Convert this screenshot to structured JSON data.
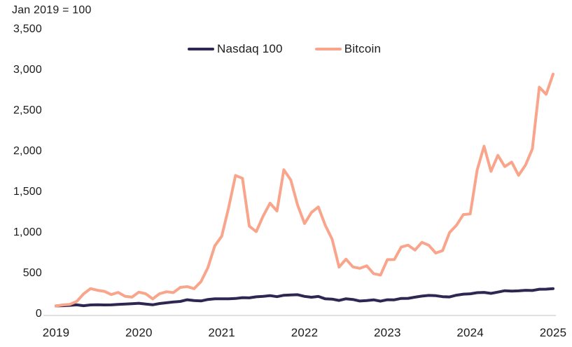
{
  "chart_data": {
    "type": "line",
    "title": "Jan 2019 = 100",
    "x_interval": "monthly",
    "x_start": "Jan 2019",
    "x_end": "Jan 2025",
    "ylim": [
      0,
      3500
    ],
    "grid": false,
    "legend_position": "top-center",
    "background_color": "#ffffff",
    "axis_line_color": "#e0e0e0",
    "text_color": "#1b1b1b",
    "y_tick_values": [
      0,
      500,
      1000,
      1500,
      2000,
      2500,
      3000,
      3500
    ],
    "y_tick_labels": [
      "0",
      "500",
      "1,000",
      "1,500",
      "2,000",
      "2,500",
      "3,000",
      "3,500"
    ],
    "x_tick_labels": [
      "2019",
      "2020",
      "2021",
      "2022",
      "2023",
      "2024",
      "2025"
    ],
    "x_tick_month_indices": [
      0,
      12,
      24,
      36,
      48,
      60,
      72
    ],
    "series": [
      {
        "name": "Nasdaq 100",
        "color": "#2e2751",
        "values": [
          100,
          103,
          107,
          113,
          103,
          112,
          114,
          112,
          113,
          118,
          122,
          127,
          133,
          123,
          114,
          129,
          139,
          148,
          155,
          176,
          166,
          161,
          179,
          188,
          188,
          188,
          191,
          202,
          199,
          212,
          218,
          227,
          214,
          231,
          235,
          238,
          217,
          207,
          216,
          187,
          184,
          167,
          188,
          179,
          160,
          166,
          175,
          159,
          176,
          175,
          192,
          193,
          208,
          221,
          229,
          226,
          214,
          210,
          232,
          245,
          249,
          263,
          266,
          254,
          270,
          287,
          282,
          285,
          292,
          290,
          305,
          306,
          313
        ]
      },
      {
        "name": "Bitcoin",
        "color": "#f9a58c",
        "values": [
          100,
          112,
          119,
          155,
          248,
          313,
          292,
          279,
          240,
          266,
          219,
          208,
          270,
          249,
          186,
          250,
          274,
          264,
          328,
          338,
          312,
          399,
          570,
          839,
          958,
          1306,
          1704,
          1670,
          1080,
          1014,
          1204,
          1364,
          1267,
          1774,
          1649,
          1340,
          1113,
          1250,
          1317,
          1091,
          920,
          578,
          675,
          580,
          562,
          593,
          497,
          479,
          669,
          670,
          824,
          847,
          787,
          882,
          846,
          750,
          780,
          1003,
          1091,
          1223,
          1232,
          1770,
          2064,
          1754,
          1952,
          1813,
          1869,
          1706,
          1832,
          2031,
          2790,
          2703,
          2951
        ]
      }
    ]
  }
}
